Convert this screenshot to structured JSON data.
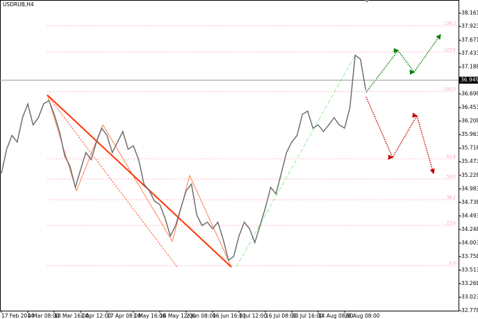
{
  "chart_data": {
    "type": "line",
    "title": "USDRUB,H4",
    "color": "#6e6e6e",
    "categories": [
      "17 Feb 2014",
      null,
      null,
      null,
      null,
      "4 Mar 08:00",
      null,
      null,
      null,
      null,
      "18 Mar 16:00",
      null,
      null,
      null,
      null,
      "2 Apr 12:00",
      null,
      null,
      null,
      null,
      "17 Apr 08:00",
      null,
      null,
      null,
      null,
      "1 May 16:00",
      null,
      null,
      null,
      null,
      "16 May 12:00",
      null,
      null,
      null,
      null,
      "2 Jun 08:00",
      null,
      null,
      null,
      null,
      "16 Jun 16:00",
      null,
      null,
      null,
      null,
      "1 Jul 12:00",
      null,
      null,
      null,
      null,
      "16 Jul 08:00",
      null,
      null,
      null,
      null,
      "30 Jul 16:00",
      null,
      null,
      null,
      null,
      "14 Aug 08:00",
      null,
      null,
      null,
      null,
      "26 Aug 08:00",
      null,
      null,
      null,
      null
    ],
    "values": [
      35.26,
      35.7,
      35.95,
      35.83,
      36.27,
      36.52,
      36.14,
      36.27,
      36.52,
      36.58,
      36.33,
      36.02,
      35.58,
      35.39,
      35.01,
      35.33,
      35.64,
      35.51,
      35.83,
      36.08,
      35.95,
      35.64,
      35.83,
      36.02,
      35.7,
      35.76,
      35.51,
      35.07,
      34.95,
      34.76,
      34.7,
      34.45,
      34.13,
      34.32,
      34.64,
      34.95,
      35.07,
      34.51,
      34.32,
      34.38,
      34.26,
      34.38,
      34.07,
      33.69,
      33.76,
      34.13,
      34.38,
      34.26,
      34.01,
      34.32,
      34.64,
      35.01,
      34.89,
      35.26,
      35.64,
      35.83,
      35.95,
      36.33,
      36.39,
      36.08,
      36.14,
      36.02,
      36.14,
      36.27,
      36.14,
      36.08,
      36.45,
      37.4,
      37.33,
      36.77
    ],
    "ylim": [
      32.778,
      38.4
    ],
    "yticks": [
      {
        "value": 38.161,
        "label": "38.1610"
      },
      {
        "value": 37.923,
        "label": "37.9230"
      },
      {
        "value": 37.671,
        "label": "37.6710"
      },
      {
        "value": 37.433,
        "label": "37.4330"
      },
      {
        "value": 37.188,
        "label": "37.1880"
      },
      {
        "value": 36.698,
        "label": "36.6980"
      },
      {
        "value": 36.453,
        "label": "36.4530"
      },
      {
        "value": 36.208,
        "label": "36.2080"
      },
      {
        "value": 35.963,
        "label": "35.9630"
      },
      {
        "value": 35.718,
        "label": "35.7180"
      },
      {
        "value": 35.473,
        "label": "35.4730"
      },
      {
        "value": 35.228,
        "label": "35.2280"
      },
      {
        "value": 34.983,
        "label": "34.9830"
      },
      {
        "value": 34.738,
        "label": "34.7380"
      },
      {
        "value": 34.493,
        "label": "34.4930"
      },
      {
        "value": 34.248,
        "label": "34.2480"
      },
      {
        "value": 34.003,
        "label": "34.0030"
      },
      {
        "value": 33.758,
        "label": "33.7580"
      },
      {
        "value": 33.513,
        "label": "33.5130"
      },
      {
        "value": 33.268,
        "label": "33.2680"
      },
      {
        "value": 33.023,
        "label": "33.0230"
      },
      {
        "value": 32.778,
        "label": "32.7780"
      }
    ],
    "current_price": {
      "value": 36.949,
      "label": "36.9490"
    },
    "levels": [
      {
        "value": 37.936,
        "label": "138.2"
      },
      {
        "value": 37.459,
        "label": "123.6"
      },
      {
        "value": 36.744,
        "label": "100.0"
      },
      {
        "value": 35.526,
        "label": "61.8"
      },
      {
        "value": 35.163,
        "label": "50.0"
      },
      {
        "value": 34.786,
        "label": "38.2"
      },
      {
        "value": 34.322,
        "label": "23.6"
      },
      {
        "value": 33.594,
        "label": "0.0"
      }
    ]
  }
}
